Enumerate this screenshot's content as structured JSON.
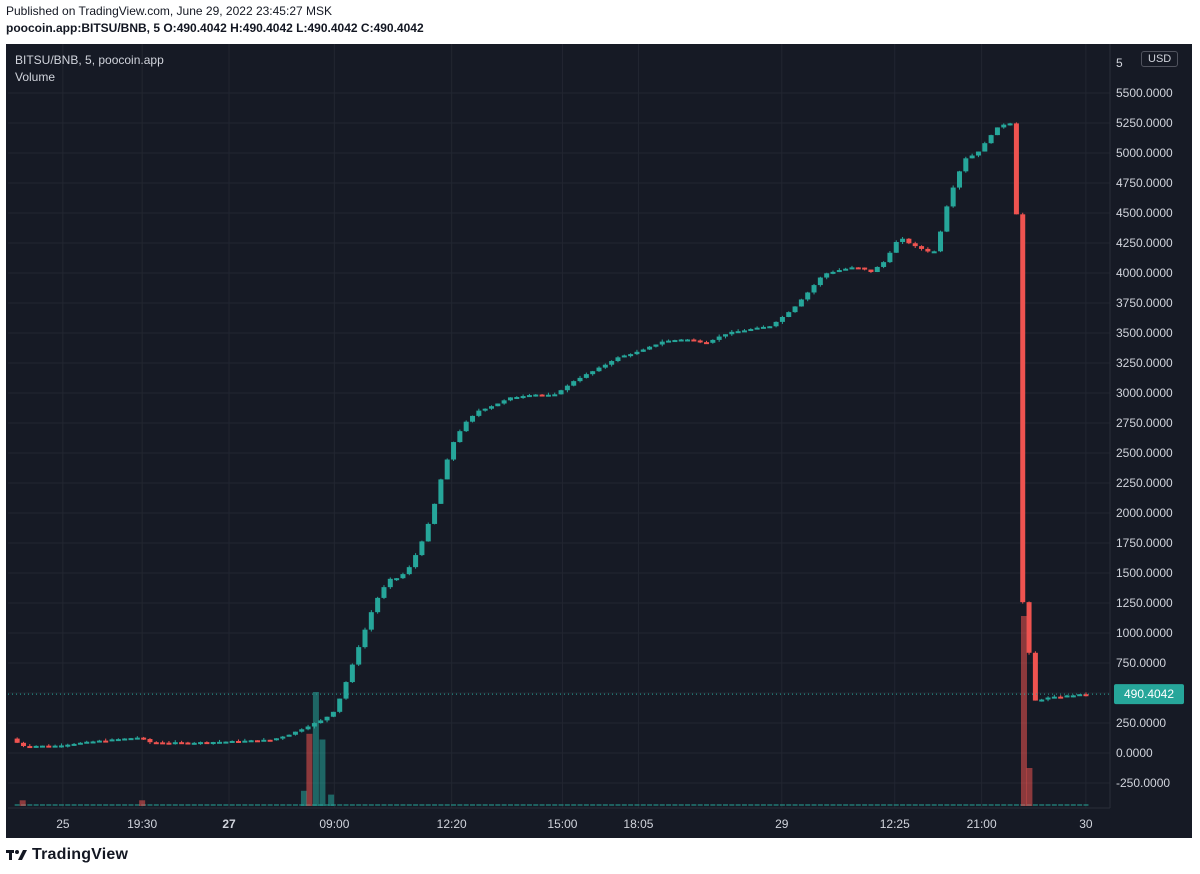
{
  "header": {
    "published": "Published on TradingView.com, June 29, 2022 23:45:27 MSK",
    "symbol": "poocoin.app:BITSU/BNB, 5",
    "o_label": "O:",
    "o_value": "490.4042",
    "h_label": "H:",
    "h_value": "490.4042",
    "l_label": "L:",
    "l_value": "490.4042",
    "c_label": "C:",
    "c_value": "490.4042"
  },
  "legend": {
    "title": "BITSU/BNB, 5, poocoin.app",
    "volume": "Volume",
    "currency": "USD"
  },
  "footer": {
    "brand": "TradingView"
  },
  "colors": {
    "background": "#161a25",
    "up": "#26a69a",
    "down": "#ef5350",
    "grid": "#222631",
    "axis_text": "#d1d4dc",
    "last_price_bg": "#26a69a"
  },
  "chart_data": {
    "type": "candlestick",
    "title": "BITSU/BNB, 5, poocoin.app",
    "last_price": 490.4042,
    "last_price_label": "490.4042",
    "ylim": [
      -400,
      5850
    ],
    "y_ticks": [
      "5500.0000",
      "5250.0000",
      "5000.0000",
      "4750.0000",
      "4500.0000",
      "4250.0000",
      "4000.0000",
      "3750.0000",
      "3500.0000",
      "3250.0000",
      "3000.0000",
      "2750.0000",
      "2500.0000",
      "2250.0000",
      "2000.0000",
      "1750.0000",
      "1500.0000",
      "1250.0000",
      "1000.0000",
      "750.0000",
      "500.0000",
      "250.0000",
      "0.0000",
      "-250.0000"
    ],
    "y_tick_values": [
      5500,
      5250,
      5000,
      4750,
      4500,
      4250,
      4000,
      3750,
      3500,
      3250,
      3000,
      2750,
      2500,
      2250,
      2000,
      1750,
      1500,
      1250,
      1000,
      750,
      500,
      250,
      0,
      -250
    ],
    "x_ticks": [
      {
        "label": "25",
        "t": 0.045,
        "bold": false
      },
      {
        "label": "19:30",
        "t": 0.118,
        "bold": false
      },
      {
        "label": "27",
        "t": 0.198,
        "bold": true
      },
      {
        "label": "09:00",
        "t": 0.295,
        "bold": false
      },
      {
        "label": "12:20",
        "t": 0.403,
        "bold": false
      },
      {
        "label": "15:00",
        "t": 0.505,
        "bold": false
      },
      {
        "label": "18:05",
        "t": 0.575,
        "bold": false
      },
      {
        "label": "29",
        "t": 0.707,
        "bold": false
      },
      {
        "label": "12:25",
        "t": 0.811,
        "bold": false
      },
      {
        "label": "21:00",
        "t": 0.891,
        "bold": false
      },
      {
        "label": "30",
        "t": 0.987,
        "bold": false
      }
    ],
    "path": [
      [
        0.0,
        120
      ],
      [
        0.01,
        60
      ],
      [
        0.04,
        60
      ],
      [
        0.08,
        100
      ],
      [
        0.118,
        130
      ],
      [
        0.128,
        90
      ],
      [
        0.16,
        85
      ],
      [
        0.198,
        95
      ],
      [
        0.24,
        110
      ],
      [
        0.258,
        160
      ],
      [
        0.275,
        230
      ],
      [
        0.288,
        280
      ],
      [
        0.298,
        350
      ],
      [
        0.305,
        500
      ],
      [
        0.315,
        750
      ],
      [
        0.325,
        1000
      ],
      [
        0.335,
        1250
      ],
      [
        0.348,
        1450
      ],
      [
        0.358,
        1460
      ],
      [
        0.368,
        1560
      ],
      [
        0.378,
        1750
      ],
      [
        0.388,
        2000
      ],
      [
        0.398,
        2350
      ],
      [
        0.408,
        2600
      ],
      [
        0.418,
        2750
      ],
      [
        0.43,
        2850
      ],
      [
        0.445,
        2900
      ],
      [
        0.46,
        2960
      ],
      [
        0.48,
        2990
      ],
      [
        0.5,
        2980
      ],
      [
        0.52,
        3110
      ],
      [
        0.54,
        3200
      ],
      [
        0.56,
        3300
      ],
      [
        0.58,
        3350
      ],
      [
        0.6,
        3430
      ],
      [
        0.62,
        3450
      ],
      [
        0.64,
        3420
      ],
      [
        0.66,
        3500
      ],
      [
        0.68,
        3530
      ],
      [
        0.7,
        3560
      ],
      [
        0.72,
        3700
      ],
      [
        0.735,
        3850
      ],
      [
        0.748,
        3990
      ],
      [
        0.765,
        4030
      ],
      [
        0.778,
        4050
      ],
      [
        0.792,
        4010
      ],
      [
        0.805,
        4100
      ],
      [
        0.818,
        4300
      ],
      [
        0.83,
        4230
      ],
      [
        0.845,
        4180
      ],
      [
        0.853,
        4180
      ],
      [
        0.858,
        4450
      ],
      [
        0.868,
        4720
      ],
      [
        0.878,
        4950
      ],
      [
        0.89,
        5000
      ],
      [
        0.9,
        5120
      ],
      [
        0.91,
        5230
      ],
      [
        0.92,
        5250
      ],
      [
        0.925,
        5240
      ],
      [
        0.93,
        1250
      ],
      [
        0.935,
        1270
      ],
      [
        0.94,
        430
      ],
      [
        0.955,
        460
      ],
      [
        0.975,
        480
      ],
      [
        0.99,
        490.4042
      ]
    ],
    "candle_range": [
      0.0,
      0.99
    ],
    "volume": {
      "max": 1,
      "spikes": [
        {
          "t": 0.008,
          "v": 0.03,
          "dir": "down"
        },
        {
          "t": 0.118,
          "v": 0.03,
          "dir": "down"
        },
        {
          "t": 0.267,
          "v": 0.08,
          "dir": "up"
        },
        {
          "t": 0.272,
          "v": 0.38,
          "dir": "down"
        },
        {
          "t": 0.278,
          "v": 0.6,
          "dir": "up"
        },
        {
          "t": 0.284,
          "v": 0.35,
          "dir": "up"
        },
        {
          "t": 0.292,
          "v": 0.06,
          "dir": "up"
        },
        {
          "t": 0.93,
          "v": 1.0,
          "dir": "down"
        },
        {
          "t": 0.935,
          "v": 0.2,
          "dir": "down"
        }
      ]
    }
  }
}
